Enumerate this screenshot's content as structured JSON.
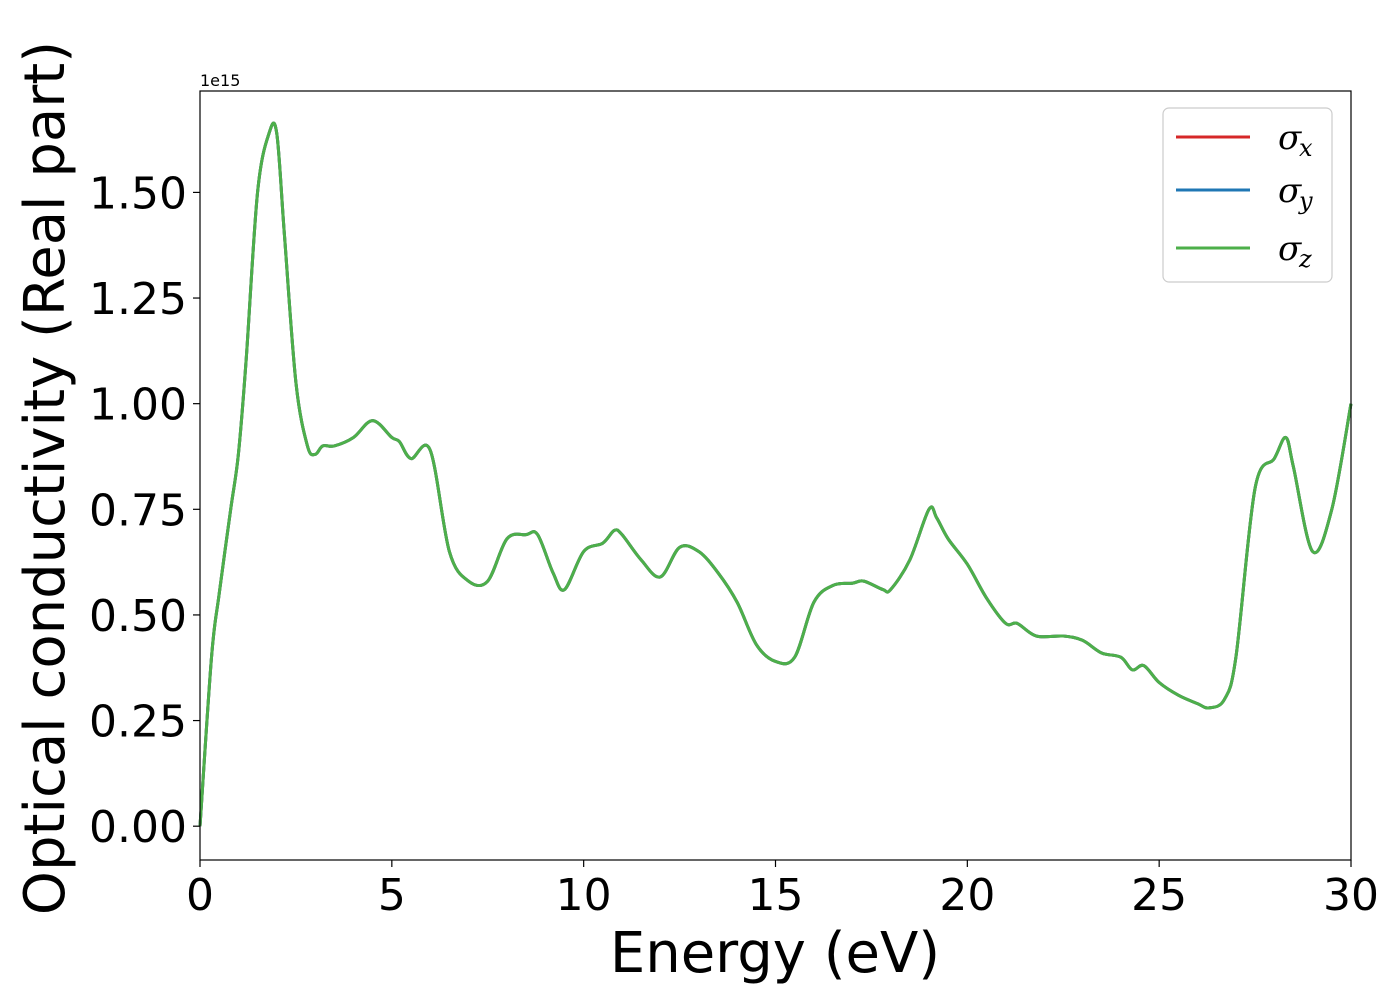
{
  "chart_data": {
    "type": "line",
    "title": "",
    "xlabel": "Energy (eV)",
    "ylabel": "Optical conductivity (Real part)",
    "y_offset_label": "1e15",
    "xlim": [
      0,
      30
    ],
    "ylim": [
      -0.08,
      1.74
    ],
    "xticks": [
      0,
      5,
      10,
      15,
      20,
      25,
      30
    ],
    "xtick_labels": [
      "0",
      "5",
      "10",
      "15",
      "20",
      "25",
      "30"
    ],
    "yticks": [
      0.0,
      0.25,
      0.5,
      0.75,
      1.0,
      1.25,
      1.5
    ],
    "ytick_labels": [
      "0.00",
      "0.25",
      "0.50",
      "0.75",
      "1.00",
      "1.25",
      "1.50"
    ],
    "grid": false,
    "legend_position": "top-right",
    "x": [
      0,
      0.3,
      0.5,
      0.8,
      1.0,
      1.2,
      1.5,
      1.8,
      2.0,
      2.2,
      2.5,
      2.8,
      3.0,
      3.2,
      3.5,
      4.0,
      4.5,
      5.0,
      5.2,
      5.5,
      6.0,
      6.5,
      7.0,
      7.5,
      8.0,
      8.5,
      8.8,
      9.2,
      9.5,
      10.0,
      10.5,
      10.8,
      11.0,
      11.5,
      12.0,
      12.5,
      13.0,
      13.5,
      14.0,
      14.5,
      15.0,
      15.5,
      16.0,
      16.5,
      17.0,
      17.3,
      17.8,
      18.0,
      18.5,
      19.0,
      19.2,
      19.5,
      20.0,
      20.5,
      21.0,
      21.3,
      21.8,
      22.5,
      23.0,
      23.5,
      24.0,
      24.3,
      24.6,
      25.0,
      25.5,
      26.0,
      26.3,
      26.7,
      27.0,
      27.5,
      28.0,
      28.3,
      28.5,
      29.0,
      29.5,
      30.0
    ],
    "series": [
      {
        "name": "x",
        "color": "#d62728",
        "values": [
          0,
          0.4,
          0.55,
          0.75,
          0.88,
          1.1,
          1.5,
          1.64,
          1.64,
          1.4,
          1.05,
          0.9,
          0.88,
          0.9,
          0.9,
          0.92,
          0.96,
          0.92,
          0.91,
          0.87,
          0.89,
          0.65,
          0.58,
          0.58,
          0.68,
          0.69,
          0.69,
          0.6,
          0.56,
          0.65,
          0.67,
          0.7,
          0.69,
          0.63,
          0.59,
          0.66,
          0.65,
          0.6,
          0.53,
          0.43,
          0.39,
          0.4,
          0.53,
          0.57,
          0.575,
          0.58,
          0.56,
          0.56,
          0.63,
          0.75,
          0.73,
          0.68,
          0.62,
          0.54,
          0.48,
          0.48,
          0.45,
          0.45,
          0.44,
          0.41,
          0.4,
          0.37,
          0.38,
          0.34,
          0.31,
          0.29,
          0.28,
          0.3,
          0.4,
          0.8,
          0.87,
          0.92,
          0.85,
          0.65,
          0.75,
          1.0
        ]
      },
      {
        "name": "y",
        "color": "#1f77b4",
        "values": [
          0,
          0.4,
          0.55,
          0.75,
          0.88,
          1.1,
          1.5,
          1.64,
          1.64,
          1.4,
          1.05,
          0.9,
          0.88,
          0.9,
          0.9,
          0.92,
          0.96,
          0.92,
          0.91,
          0.87,
          0.89,
          0.65,
          0.58,
          0.58,
          0.68,
          0.69,
          0.69,
          0.6,
          0.56,
          0.65,
          0.67,
          0.7,
          0.69,
          0.63,
          0.59,
          0.66,
          0.65,
          0.6,
          0.53,
          0.43,
          0.39,
          0.4,
          0.53,
          0.57,
          0.575,
          0.58,
          0.56,
          0.56,
          0.63,
          0.75,
          0.73,
          0.68,
          0.62,
          0.54,
          0.48,
          0.48,
          0.45,
          0.45,
          0.44,
          0.41,
          0.4,
          0.37,
          0.38,
          0.34,
          0.31,
          0.29,
          0.28,
          0.3,
          0.4,
          0.8,
          0.87,
          0.92,
          0.85,
          0.65,
          0.75,
          1.0
        ]
      },
      {
        "name": "z",
        "color": "#4daf4a",
        "values": [
          0,
          0.4,
          0.55,
          0.75,
          0.88,
          1.1,
          1.5,
          1.64,
          1.64,
          1.4,
          1.05,
          0.9,
          0.88,
          0.9,
          0.9,
          0.92,
          0.96,
          0.92,
          0.91,
          0.87,
          0.89,
          0.65,
          0.58,
          0.58,
          0.68,
          0.69,
          0.69,
          0.6,
          0.56,
          0.65,
          0.67,
          0.7,
          0.69,
          0.63,
          0.59,
          0.66,
          0.65,
          0.6,
          0.53,
          0.43,
          0.39,
          0.4,
          0.53,
          0.57,
          0.575,
          0.58,
          0.56,
          0.56,
          0.63,
          0.75,
          0.73,
          0.68,
          0.62,
          0.54,
          0.48,
          0.48,
          0.45,
          0.45,
          0.44,
          0.41,
          0.4,
          0.37,
          0.38,
          0.34,
          0.31,
          0.29,
          0.28,
          0.3,
          0.4,
          0.8,
          0.87,
          0.92,
          0.85,
          0.65,
          0.75,
          1.0
        ]
      }
    ]
  },
  "legend": {
    "symbol": "σ",
    "entries": [
      "x",
      "y",
      "z"
    ]
  }
}
